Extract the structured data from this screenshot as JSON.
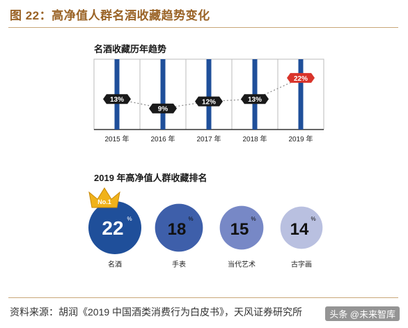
{
  "figure_title": "图 22：高净值人群名酒收藏趋势变化",
  "source_note": "资料来源：胡润《2019 中国酒类消费行为白皮书》，天风证券研究所",
  "watermark": "头条 @未来智库",
  "colors": {
    "title_brown": "#9a6326",
    "bar_blue": "#1f4f9a",
    "highlight_red": "#d9342b",
    "label_dark": "#1a1a1a",
    "circle_1": "#1f4f9a",
    "circle_2": "#3e5faa",
    "circle_3": "#7788c6",
    "circle_4": "#b9c0e0",
    "crown_gold": "#f0b21a"
  },
  "chart_data": [
    {
      "type": "bar",
      "title": "名酒收藏历年趋势",
      "categories": [
        "2015 年",
        "2016 年",
        "2017 年",
        "2018 年",
        "2019 年"
      ],
      "values": [
        13,
        9,
        12,
        13,
        22
      ],
      "value_labels": [
        "13%",
        "9%",
        "12%",
        "13%",
        "22%"
      ],
      "ylim": [
        0,
        30
      ],
      "highlight_index": 4
    },
    {
      "type": "bubble-ranking",
      "title": "2019 年高净值人群收藏排名",
      "badge": "No.1",
      "items": [
        {
          "label": "名酒",
          "value": 22,
          "value_text": "22",
          "unit": "%"
        },
        {
          "label": "手表",
          "value": 18,
          "value_text": "18",
          "unit": "%"
        },
        {
          "label": "当代艺术",
          "value": 15,
          "value_text": "15",
          "unit": "%"
        },
        {
          "label": "古字画",
          "value": 14,
          "value_text": "14",
          "unit": "%"
        }
      ]
    }
  ]
}
